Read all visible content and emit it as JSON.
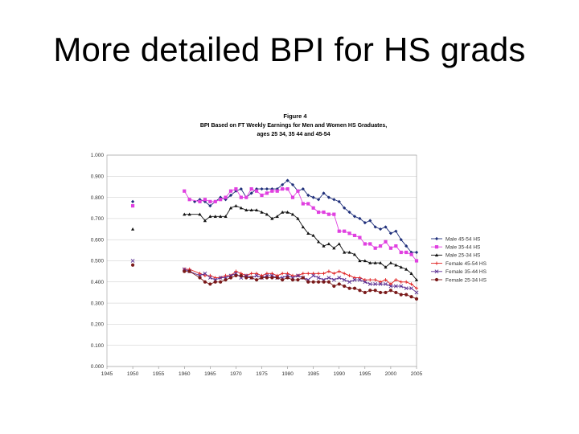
{
  "slide": {
    "title": "More detailed BPI for HS grads"
  },
  "chart_data": {
    "type": "line",
    "figure_label": "Figure 4",
    "title_lines": [
      "BPI Based on FT Weekly Earnings for Men and Women HS Graduates,",
      "ages 25 34, 35 44 and 45-54"
    ],
    "xlabel": "",
    "ylabel": "",
    "xlim": [
      1945,
      2005
    ],
    "ylim": [
      0,
      1
    ],
    "xticks": [
      1945,
      1950,
      1955,
      1960,
      1965,
      1970,
      1975,
      1980,
      1985,
      1990,
      1995,
      2000,
      2005
    ],
    "yticks": [
      "0.000",
      "0.100",
      "0.200",
      "0.300",
      "0.400",
      "0.500",
      "0.600",
      "0.700",
      "0.800",
      "0.900",
      "1.000"
    ],
    "grid": true,
    "legend_position": "right",
    "series": [
      {
        "name": "Male 45-54 HS",
        "color": "#1f2f7a",
        "marker": "diamond",
        "points": [
          [
            1950,
            0.78
          ],
          [
            1962,
            0.78
          ],
          [
            1963,
            0.79
          ],
          [
            1964,
            0.78
          ],
          [
            1965,
            0.76
          ],
          [
            1966,
            0.78
          ],
          [
            1967,
            0.8
          ],
          [
            1968,
            0.79
          ],
          [
            1969,
            0.81
          ],
          [
            1970,
            0.83
          ],
          [
            1971,
            0.84
          ],
          [
            1972,
            0.8
          ],
          [
            1973,
            0.82
          ],
          [
            1974,
            0.84
          ],
          [
            1975,
            0.84
          ],
          [
            1976,
            0.84
          ],
          [
            1977,
            0.84
          ],
          [
            1978,
            0.84
          ],
          [
            1979,
            0.86
          ],
          [
            1980,
            0.88
          ],
          [
            1981,
            0.86
          ],
          [
            1982,
            0.83
          ],
          [
            1983,
            0.84
          ],
          [
            1984,
            0.81
          ],
          [
            1985,
            0.8
          ],
          [
            1986,
            0.79
          ],
          [
            1987,
            0.82
          ],
          [
            1988,
            0.8
          ],
          [
            1989,
            0.79
          ],
          [
            1990,
            0.78
          ],
          [
            1991,
            0.75
          ],
          [
            1992,
            0.73
          ],
          [
            1993,
            0.71
          ],
          [
            1994,
            0.7
          ],
          [
            1995,
            0.68
          ],
          [
            1996,
            0.69
          ],
          [
            1997,
            0.66
          ],
          [
            1998,
            0.65
          ],
          [
            1999,
            0.66
          ],
          [
            2000,
            0.63
          ],
          [
            2001,
            0.64
          ],
          [
            2002,
            0.6
          ],
          [
            2003,
            0.57
          ],
          [
            2004,
            0.54
          ],
          [
            2005,
            0.54
          ]
        ]
      },
      {
        "name": "Male 35-44 HS",
        "color": "#e040e0",
        "marker": "square",
        "points": [
          [
            1950,
            0.76
          ],
          [
            1960,
            0.83
          ],
          [
            1961,
            0.79
          ],
          [
            1963,
            0.78
          ],
          [
            1964,
            0.79
          ],
          [
            1965,
            0.78
          ],
          [
            1966,
            0.78
          ],
          [
            1967,
            0.79
          ],
          [
            1968,
            0.8
          ],
          [
            1969,
            0.83
          ],
          [
            1970,
            0.84
          ],
          [
            1971,
            0.8
          ],
          [
            1972,
            0.8
          ],
          [
            1973,
            0.84
          ],
          [
            1974,
            0.83
          ],
          [
            1975,
            0.81
          ],
          [
            1976,
            0.82
          ],
          [
            1977,
            0.83
          ],
          [
            1978,
            0.83
          ],
          [
            1979,
            0.84
          ],
          [
            1980,
            0.84
          ],
          [
            1981,
            0.8
          ],
          [
            1982,
            0.83
          ],
          [
            1983,
            0.77
          ],
          [
            1984,
            0.77
          ],
          [
            1985,
            0.75
          ],
          [
            1986,
            0.73
          ],
          [
            1987,
            0.73
          ],
          [
            1988,
            0.72
          ],
          [
            1989,
            0.72
          ],
          [
            1990,
            0.64
          ],
          [
            1991,
            0.64
          ],
          [
            1992,
            0.63
          ],
          [
            1993,
            0.62
          ],
          [
            1994,
            0.61
          ],
          [
            1995,
            0.58
          ],
          [
            1996,
            0.58
          ],
          [
            1997,
            0.56
          ],
          [
            1998,
            0.57
          ],
          [
            1999,
            0.59
          ],
          [
            2000,
            0.56
          ],
          [
            2001,
            0.57
          ],
          [
            2002,
            0.54
          ],
          [
            2003,
            0.54
          ],
          [
            2004,
            0.53
          ],
          [
            2005,
            0.5
          ]
        ]
      },
      {
        "name": "Male 25-34 HS",
        "color": "#111111",
        "marker": "triangle",
        "points": [
          [
            1950,
            0.65
          ],
          [
            1960,
            0.72
          ],
          [
            1961,
            0.72
          ],
          [
            1963,
            0.72
          ],
          [
            1964,
            0.69
          ],
          [
            1965,
            0.71
          ],
          [
            1966,
            0.71
          ],
          [
            1967,
            0.71
          ],
          [
            1968,
            0.71
          ],
          [
            1969,
            0.75
          ],
          [
            1970,
            0.76
          ],
          [
            1971,
            0.75
          ],
          [
            1972,
            0.74
          ],
          [
            1973,
            0.74
          ],
          [
            1974,
            0.74
          ],
          [
            1975,
            0.73
          ],
          [
            1976,
            0.72
          ],
          [
            1977,
            0.7
          ],
          [
            1978,
            0.71
          ],
          [
            1979,
            0.73
          ],
          [
            1980,
            0.73
          ],
          [
            1981,
            0.72
          ],
          [
            1982,
            0.7
          ],
          [
            1983,
            0.66
          ],
          [
            1984,
            0.63
          ],
          [
            1985,
            0.62
          ],
          [
            1986,
            0.59
          ],
          [
            1987,
            0.57
          ],
          [
            1988,
            0.58
          ],
          [
            1989,
            0.56
          ],
          [
            1990,
            0.58
          ],
          [
            1991,
            0.54
          ],
          [
            1992,
            0.54
          ],
          [
            1993,
            0.53
          ],
          [
            1994,
            0.5
          ],
          [
            1995,
            0.5
          ],
          [
            1996,
            0.49
          ],
          [
            1997,
            0.49
          ],
          [
            1998,
            0.49
          ],
          [
            1999,
            0.47
          ],
          [
            2000,
            0.49
          ],
          [
            2001,
            0.48
          ],
          [
            2002,
            0.47
          ],
          [
            2003,
            0.46
          ],
          [
            2004,
            0.44
          ],
          [
            2005,
            0.41
          ]
        ]
      },
      {
        "name": "Female 45-54 HS",
        "color": "#e02020",
        "marker": "plus",
        "points": [
          [
            1960,
            0.46
          ],
          [
            1961,
            0.46
          ],
          [
            1963,
            0.44
          ],
          [
            1964,
            0.43
          ],
          [
            1965,
            0.43
          ],
          [
            1966,
            0.42
          ],
          [
            1967,
            0.42
          ],
          [
            1968,
            0.43
          ],
          [
            1969,
            0.43
          ],
          [
            1970,
            0.45
          ],
          [
            1971,
            0.44
          ],
          [
            1972,
            0.43
          ],
          [
            1973,
            0.44
          ],
          [
            1974,
            0.44
          ],
          [
            1975,
            0.43
          ],
          [
            1976,
            0.44
          ],
          [
            1977,
            0.44
          ],
          [
            1978,
            0.43
          ],
          [
            1979,
            0.44
          ],
          [
            1980,
            0.44
          ],
          [
            1981,
            0.43
          ],
          [
            1982,
            0.43
          ],
          [
            1983,
            0.44
          ],
          [
            1984,
            0.44
          ],
          [
            1985,
            0.44
          ],
          [
            1986,
            0.44
          ],
          [
            1987,
            0.44
          ],
          [
            1988,
            0.45
          ],
          [
            1989,
            0.44
          ],
          [
            1990,
            0.45
          ],
          [
            1991,
            0.44
          ],
          [
            1992,
            0.43
          ],
          [
            1993,
            0.42
          ],
          [
            1994,
            0.42
          ],
          [
            1995,
            0.41
          ],
          [
            1996,
            0.41
          ],
          [
            1997,
            0.41
          ],
          [
            1998,
            0.4
          ],
          [
            1999,
            0.41
          ],
          [
            2000,
            0.39
          ],
          [
            2001,
            0.41
          ],
          [
            2002,
            0.4
          ],
          [
            2003,
            0.4
          ],
          [
            2004,
            0.39
          ],
          [
            2005,
            0.37
          ]
        ]
      },
      {
        "name": "Female 35-44 HS",
        "color": "#5a2d91",
        "marker": "x",
        "points": [
          [
            1950,
            0.5
          ],
          [
            1960,
            0.46
          ],
          [
            1961,
            0.45
          ],
          [
            1963,
            0.43
          ],
          [
            1964,
            0.44
          ],
          [
            1965,
            0.42
          ],
          [
            1966,
            0.41
          ],
          [
            1967,
            0.42
          ],
          [
            1968,
            0.42
          ],
          [
            1969,
            0.43
          ],
          [
            1970,
            0.44
          ],
          [
            1971,
            0.42
          ],
          [
            1972,
            0.43
          ],
          [
            1973,
            0.42
          ],
          [
            1974,
            0.43
          ],
          [
            1975,
            0.42
          ],
          [
            1976,
            0.43
          ],
          [
            1977,
            0.43
          ],
          [
            1978,
            0.42
          ],
          [
            1979,
            0.42
          ],
          [
            1980,
            0.43
          ],
          [
            1981,
            0.42
          ],
          [
            1982,
            0.43
          ],
          [
            1983,
            0.42
          ],
          [
            1984,
            0.41
          ],
          [
            1985,
            0.43
          ],
          [
            1986,
            0.42
          ],
          [
            1987,
            0.41
          ],
          [
            1988,
            0.42
          ],
          [
            1989,
            0.41
          ],
          [
            1990,
            0.42
          ],
          [
            1991,
            0.41
          ],
          [
            1992,
            0.4
          ],
          [
            1993,
            0.41
          ],
          [
            1994,
            0.41
          ],
          [
            1995,
            0.4
          ],
          [
            1996,
            0.39
          ],
          [
            1997,
            0.39
          ],
          [
            1998,
            0.39
          ],
          [
            1999,
            0.39
          ],
          [
            2000,
            0.38
          ],
          [
            2001,
            0.38
          ],
          [
            2002,
            0.38
          ],
          [
            2003,
            0.37
          ],
          [
            2004,
            0.37
          ],
          [
            2005,
            0.35
          ]
        ]
      },
      {
        "name": "Female 25-34 HS",
        "color": "#7a1a1a",
        "marker": "circle",
        "points": [
          [
            1950,
            0.48
          ],
          [
            1960,
            0.45
          ],
          [
            1961,
            0.45
          ],
          [
            1963,
            0.42
          ],
          [
            1964,
            0.4
          ],
          [
            1965,
            0.39
          ],
          [
            1966,
            0.4
          ],
          [
            1967,
            0.4
          ],
          [
            1968,
            0.41
          ],
          [
            1969,
            0.42
          ],
          [
            1970,
            0.43
          ],
          [
            1971,
            0.43
          ],
          [
            1972,
            0.42
          ],
          [
            1973,
            0.42
          ],
          [
            1974,
            0.41
          ],
          [
            1975,
            0.42
          ],
          [
            1976,
            0.42
          ],
          [
            1977,
            0.42
          ],
          [
            1978,
            0.42
          ],
          [
            1979,
            0.41
          ],
          [
            1980,
            0.42
          ],
          [
            1981,
            0.41
          ],
          [
            1982,
            0.41
          ],
          [
            1983,
            0.42
          ],
          [
            1984,
            0.4
          ],
          [
            1985,
            0.4
          ],
          [
            1986,
            0.4
          ],
          [
            1987,
            0.4
          ],
          [
            1988,
            0.4
          ],
          [
            1989,
            0.38
          ],
          [
            1990,
            0.39
          ],
          [
            1991,
            0.38
          ],
          [
            1992,
            0.37
          ],
          [
            1993,
            0.37
          ],
          [
            1994,
            0.36
          ],
          [
            1995,
            0.35
          ],
          [
            1996,
            0.36
          ],
          [
            1997,
            0.36
          ],
          [
            1998,
            0.35
          ],
          [
            1999,
            0.35
          ],
          [
            2000,
            0.36
          ],
          [
            2001,
            0.35
          ],
          [
            2002,
            0.34
          ],
          [
            2003,
            0.34
          ],
          [
            2004,
            0.33
          ],
          [
            2005,
            0.32
          ]
        ]
      }
    ]
  }
}
